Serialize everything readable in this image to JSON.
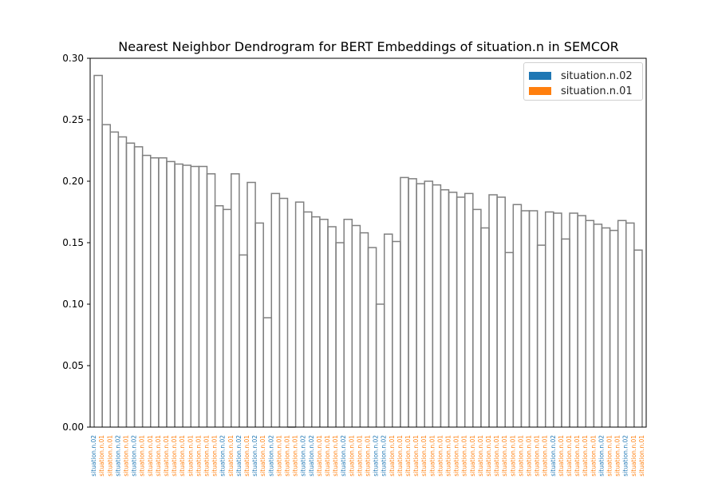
{
  "chart_data": {
    "type": "dendrogram",
    "title": "Nearest Neighbor Dendrogram for BERT Embeddings of situation.n in SEMCOR",
    "xlabel": "",
    "ylabel": "",
    "ylim": [
      0,
      0.3
    ],
    "yticks": [
      "0.00",
      "0.05",
      "0.10",
      "0.15",
      "0.20",
      "0.25",
      "0.30"
    ],
    "leaf_count": 69,
    "leaf_labels": [
      "situation.n.02",
      "situation.n.01",
      "situation.n.01",
      "situation.n.02",
      "situation.n.01",
      "situation.n.02",
      "situation.n.01",
      "situation.n.01",
      "situation.n.01",
      "situation.n.01",
      "situation.n.01",
      "situation.n.01",
      "situation.n.01",
      "situation.n.01",
      "situation.n.01",
      "situation.n.01",
      "situation.n.02",
      "situation.n.01",
      "situation.n.02",
      "situation.n.01",
      "situation.n.02",
      "situation.n.01",
      "situation.n.02",
      "situation.n.01",
      "situation.n.01",
      "situation.n.01",
      "situation.n.02",
      "situation.n.02",
      "situation.n.01",
      "situation.n.01",
      "situation.n.01",
      "situation.n.02",
      "situation.n.01",
      "situation.n.01",
      "situation.n.01",
      "situation.n.02",
      "situation.n.02",
      "situation.n.01",
      "situation.n.01",
      "situation.n.01",
      "situation.n.01",
      "situation.n.01",
      "situation.n.01",
      "situation.n.01",
      "situation.n.01",
      "situation.n.01",
      "situation.n.01",
      "situation.n.01",
      "situation.n.01",
      "situation.n.01",
      "situation.n.01",
      "situation.n.01",
      "situation.n.01",
      "situation.n.01",
      "situation.n.01",
      "situation.n.01",
      "situation.n.01",
      "situation.n.02",
      "situation.n.01",
      "situation.n.01",
      "situation.n.01",
      "situation.n.01",
      "situation.n.01",
      "situation.n.02",
      "situation.n.01",
      "situation.n.01",
      "situation.n.02",
      "situation.n.01",
      "situation.n.01"
    ],
    "merges": [
      {
        "left": 0,
        "right": 1,
        "height": 0.286
      },
      {
        "left": 1,
        "right": 2,
        "height": 0.246
      },
      {
        "left": 2,
        "right": 3,
        "height": 0.24
      },
      {
        "left": 3,
        "right": 4,
        "height": 0.236
      },
      {
        "left": 4,
        "right": 5,
        "height": 0.231
      },
      {
        "left": 5,
        "right": 6,
        "height": 0.228
      },
      {
        "left": 6,
        "right": 7,
        "height": 0.221
      },
      {
        "left": 7,
        "right": 8,
        "height": 0.219
      },
      {
        "left": 8,
        "right": 9,
        "height": 0.219
      },
      {
        "left": 9,
        "right": 10,
        "height": 0.216
      },
      {
        "left": 10,
        "right": 11,
        "height": 0.214
      },
      {
        "left": 11,
        "right": 12,
        "height": 0.213
      },
      {
        "left": 12,
        "right": 13,
        "height": 0.212
      },
      {
        "left": 13,
        "right": 14,
        "height": 0.212
      },
      {
        "left": 14,
        "right": 15,
        "height": 0.206
      },
      {
        "left": 15,
        "right": 16,
        "height": 0.18
      },
      {
        "left": 16,
        "right": 17,
        "height": 0.177
      },
      {
        "left": 17,
        "right": 18,
        "height": 0.206
      },
      {
        "left": 18,
        "right": 19,
        "height": 0.14
      },
      {
        "left": 19,
        "right": 20,
        "height": 0.199
      },
      {
        "left": 20,
        "right": 21,
        "height": 0.166
      },
      {
        "left": 21,
        "right": 22,
        "height": 0.089
      },
      {
        "left": 22,
        "right": 23,
        "height": 0.19
      },
      {
        "left": 23,
        "right": 24,
        "height": 0.186
      },
      {
        "left": 24,
        "right": 25,
        "height": 0.0
      },
      {
        "left": 25,
        "right": 26,
        "height": 0.183
      },
      {
        "left": 26,
        "right": 27,
        "height": 0.175
      },
      {
        "left": 27,
        "right": 28,
        "height": 0.171
      },
      {
        "left": 28,
        "right": 29,
        "height": 0.169
      },
      {
        "left": 29,
        "right": 30,
        "height": 0.163
      },
      {
        "left": 30,
        "right": 31,
        "height": 0.15
      },
      {
        "left": 31,
        "right": 32,
        "height": 0.169
      },
      {
        "left": 32,
        "right": 33,
        "height": 0.164
      },
      {
        "left": 33,
        "right": 34,
        "height": 0.158
      },
      {
        "left": 34,
        "right": 35,
        "height": 0.146
      },
      {
        "left": 35,
        "right": 36,
        "height": 0.1
      },
      {
        "left": 36,
        "right": 37,
        "height": 0.157
      },
      {
        "left": 37,
        "right": 38,
        "height": 0.151
      },
      {
        "left": 38,
        "right": 39,
        "height": 0.203
      },
      {
        "left": 39,
        "right": 40,
        "height": 0.202
      },
      {
        "left": 40,
        "right": 41,
        "height": 0.198
      },
      {
        "left": 41,
        "right": 42,
        "height": 0.2
      },
      {
        "left": 42,
        "right": 43,
        "height": 0.197
      },
      {
        "left": 43,
        "right": 44,
        "height": 0.193
      },
      {
        "left": 44,
        "right": 45,
        "height": 0.191
      },
      {
        "left": 45,
        "right": 46,
        "height": 0.187
      },
      {
        "left": 46,
        "right": 47,
        "height": 0.19
      },
      {
        "left": 47,
        "right": 48,
        "height": 0.177
      },
      {
        "left": 48,
        "right": 49,
        "height": 0.162
      },
      {
        "left": 49,
        "right": 50,
        "height": 0.189
      },
      {
        "left": 50,
        "right": 51,
        "height": 0.187
      },
      {
        "left": 51,
        "right": 52,
        "height": 0.142
      },
      {
        "left": 52,
        "right": 53,
        "height": 0.181
      },
      {
        "left": 53,
        "right": 54,
        "height": 0.176
      },
      {
        "left": 54,
        "right": 55,
        "height": 0.176
      },
      {
        "left": 55,
        "right": 56,
        "height": 0.148
      },
      {
        "left": 56,
        "right": 57,
        "height": 0.175
      },
      {
        "left": 57,
        "right": 58,
        "height": 0.174
      },
      {
        "left": 58,
        "right": 59,
        "height": 0.153
      },
      {
        "left": 59,
        "right": 60,
        "height": 0.174
      },
      {
        "left": 60,
        "right": 61,
        "height": 0.172
      },
      {
        "left": 61,
        "right": 62,
        "height": 0.168
      },
      {
        "left": 62,
        "right": 63,
        "height": 0.165
      },
      {
        "left": 63,
        "right": 64,
        "height": 0.162
      },
      {
        "left": 64,
        "right": 65,
        "height": 0.16
      },
      {
        "left": 65,
        "right": 66,
        "height": 0.168
      },
      {
        "left": 66,
        "right": 67,
        "height": 0.166
      },
      {
        "left": 67,
        "right": 68,
        "height": 0.144
      }
    ],
    "legend": {
      "placement": "top-right",
      "entries": [
        {
          "label": "situation.n.02",
          "color": "#1f77b4"
        },
        {
          "label": "situation.n.01",
          "color": "#ff7f0e"
        }
      ]
    },
    "grid": false
  },
  "colors": {
    "situation.n.02": "#1f77b4",
    "situation.n.01": "#ff7f0e",
    "link": "#808080"
  }
}
